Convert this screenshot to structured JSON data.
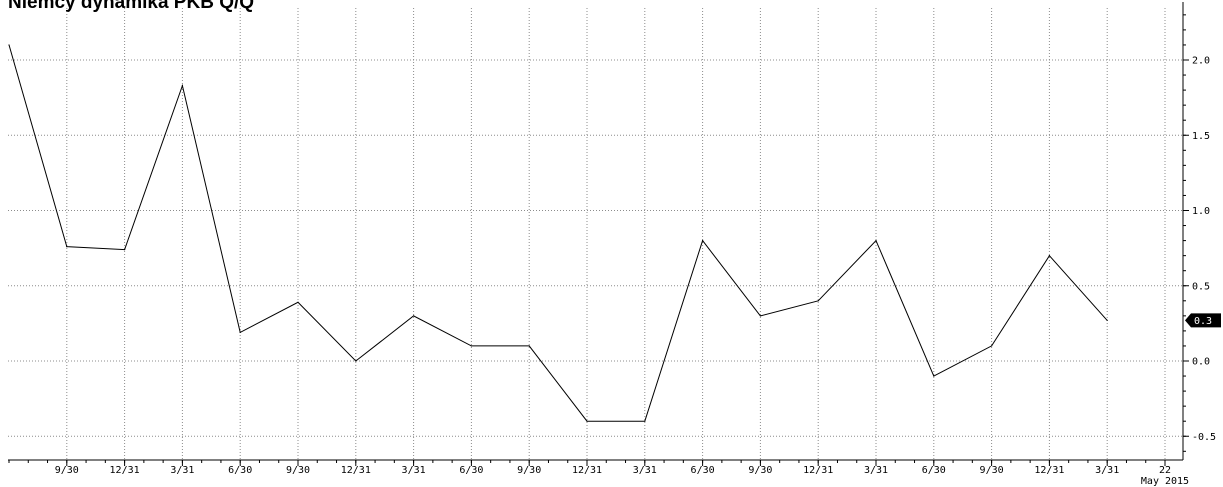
{
  "chart_data": {
    "type": "line",
    "title": "Niemcy dynamika PKB Q/Q",
    "x_tick_labels": [
      "9/30",
      "12/31",
      "3/31",
      "6/30",
      "9/30",
      "12/31",
      "3/31",
      "6/30",
      "9/30",
      "12/31",
      "3/31",
      "6/30",
      "9/30",
      "12/31",
      "3/31",
      "6/30",
      "9/30",
      "12/31",
      "3/31",
      "22"
    ],
    "x_sublabel": "May 2015",
    "y_ticks": [
      2.0,
      1.5,
      1.0,
      0.5,
      0.0,
      -0.5
    ],
    "y_tick_labels": [
      "2.0",
      "1.5",
      "1.0",
      "0.5",
      "0.0",
      "-0.5"
    ],
    "ylim": [
      -0.6,
      2.35
    ],
    "grid": true,
    "y_axis_side": "right",
    "series": [
      {
        "x": [
          "6/30",
          "9/30",
          "12/31",
          "3/31",
          "6/30",
          "9/30",
          "12/31",
          "3/31",
          "6/30",
          "9/30",
          "12/31",
          "3/31",
          "6/30",
          "9/30",
          "12/31",
          "3/31",
          "6/30",
          "9/30",
          "12/31",
          "3/31"
        ],
        "values": [
          2.1,
          0.76,
          0.74,
          1.83,
          0.19,
          0.39,
          0.0,
          0.3,
          0.1,
          0.1,
          -0.4,
          -0.4,
          0.8,
          0.3,
          0.4,
          0.8,
          -0.1,
          0.1,
          0.7,
          0.27
        ]
      }
    ],
    "last_value_label": "0.3"
  }
}
